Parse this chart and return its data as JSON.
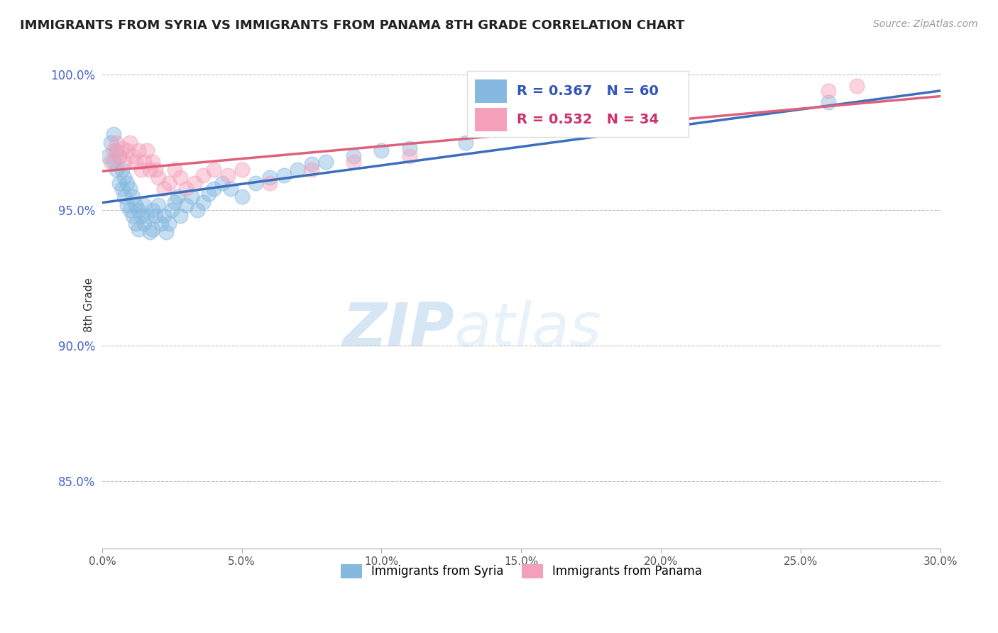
{
  "title": "IMMIGRANTS FROM SYRIA VS IMMIGRANTS FROM PANAMA 8TH GRADE CORRELATION CHART",
  "source": "Source: ZipAtlas.com",
  "ylabel": "8th Grade",
  "legend_label_blue": "Immigrants from Syria",
  "legend_label_pink": "Immigrants from Panama",
  "R_blue": 0.367,
  "N_blue": 60,
  "R_pink": 0.532,
  "N_pink": 34,
  "color_blue": "#85b9e0",
  "color_blue_line": "#3a6fbd",
  "color_pink": "#f5a0ba",
  "color_pink_line": "#e0607a",
  "xlim": [
    0.0,
    0.3
  ],
  "ylim": [
    0.825,
    1.005
  ],
  "xtick_vals": [
    0.0,
    0.05,
    0.1,
    0.15,
    0.2,
    0.25,
    0.3
  ],
  "xticklabels": [
    "0.0%",
    "5.0%",
    "10.0%",
    "15.0%",
    "20.0%",
    "25.0%",
    "30.0%"
  ],
  "ytick_vals": [
    0.85,
    0.9,
    0.95,
    1.0
  ],
  "yticklabels": [
    "85.0%",
    "90.0%",
    "95.0%",
    "100.0%"
  ],
  "watermark_zip": "ZIP",
  "watermark_atlas": "atlas",
  "syria_x": [
    0.002,
    0.003,
    0.004,
    0.004,
    0.005,
    0.005,
    0.006,
    0.006,
    0.007,
    0.007,
    0.008,
    0.008,
    0.009,
    0.009,
    0.01,
    0.01,
    0.011,
    0.011,
    0.012,
    0.012,
    0.013,
    0.013,
    0.014,
    0.015,
    0.015,
    0.016,
    0.017,
    0.018,
    0.018,
    0.019,
    0.02,
    0.021,
    0.022,
    0.023,
    0.024,
    0.025,
    0.026,
    0.027,
    0.028,
    0.03,
    0.032,
    0.034,
    0.036,
    0.038,
    0.04,
    0.043,
    0.046,
    0.05,
    0.055,
    0.06,
    0.065,
    0.07,
    0.075,
    0.08,
    0.09,
    0.1,
    0.11,
    0.13,
    0.2,
    0.26
  ],
  "syria_y": [
    0.97,
    0.975,
    0.978,
    0.968,
    0.972,
    0.965,
    0.97,
    0.96,
    0.965,
    0.958,
    0.962,
    0.955,
    0.96,
    0.952,
    0.958,
    0.95,
    0.955,
    0.948,
    0.952,
    0.945,
    0.95,
    0.943,
    0.948,
    0.952,
    0.945,
    0.948,
    0.942,
    0.95,
    0.943,
    0.948,
    0.952,
    0.945,
    0.948,
    0.942,
    0.945,
    0.95,
    0.953,
    0.955,
    0.948,
    0.952,
    0.955,
    0.95,
    0.953,
    0.956,
    0.958,
    0.96,
    0.958,
    0.955,
    0.96,
    0.962,
    0.963,
    0.965,
    0.967,
    0.968,
    0.97,
    0.972,
    0.973,
    0.975,
    0.98,
    0.99
  ],
  "panama_x": [
    0.003,
    0.004,
    0.005,
    0.006,
    0.007,
    0.008,
    0.009,
    0.01,
    0.011,
    0.012,
    0.013,
    0.014,
    0.015,
    0.016,
    0.017,
    0.018,
    0.019,
    0.02,
    0.022,
    0.024,
    0.026,
    0.028,
    0.03,
    0.033,
    0.036,
    0.04,
    0.045,
    0.05,
    0.06,
    0.075,
    0.09,
    0.11,
    0.26,
    0.27
  ],
  "panama_y": [
    0.968,
    0.972,
    0.975,
    0.97,
    0.973,
    0.968,
    0.972,
    0.975,
    0.97,
    0.968,
    0.972,
    0.965,
    0.968,
    0.972,
    0.965,
    0.968,
    0.965,
    0.962,
    0.958,
    0.96,
    0.965,
    0.962,
    0.958,
    0.96,
    0.963,
    0.965,
    0.963,
    0.965,
    0.96,
    0.965,
    0.968,
    0.97,
    0.994,
    0.996
  ]
}
